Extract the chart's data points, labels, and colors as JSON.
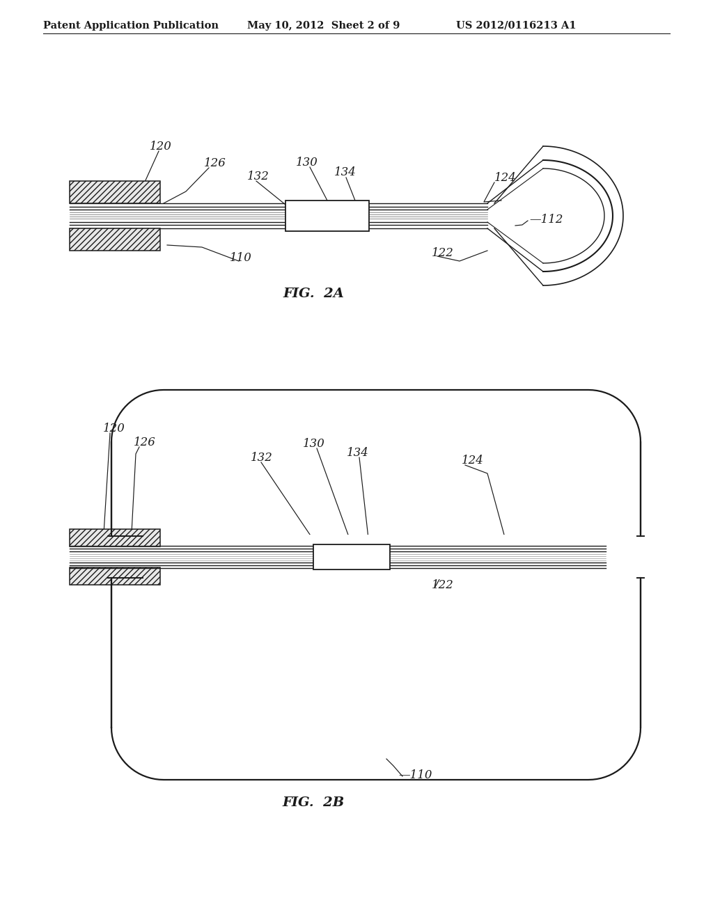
{
  "bg_color": "#ffffff",
  "line_color": "#1a1a1a",
  "header_left": "Patent Application Publication",
  "header_mid": "May 10, 2012  Sheet 2 of 9",
  "header_right": "US 2012/0116213 A1",
  "fig2a_label": "FIG.  2A",
  "fig2b_label": "FIG.  2B",
  "label_fontsize": 12,
  "header_fontsize": 10.5
}
